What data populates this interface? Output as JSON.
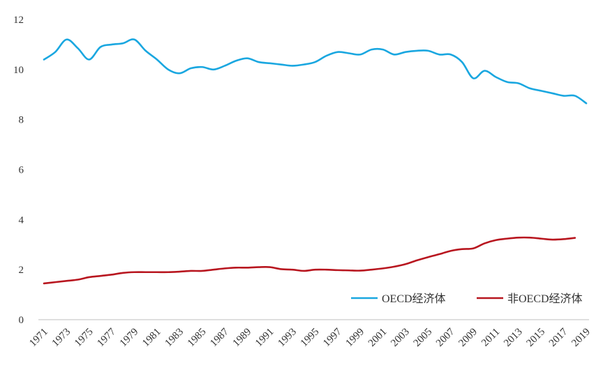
{
  "chart_data": {
    "type": "line",
    "title": "",
    "xlabel": "",
    "ylabel": "",
    "ylim": [
      0,
      12
    ],
    "y_ticks": [
      0,
      2,
      4,
      6,
      8,
      10,
      12
    ],
    "x_tick_labels": [
      "1971",
      "1973",
      "1975",
      "1977",
      "1979",
      "1981",
      "1983",
      "1985",
      "1987",
      "1989",
      "1991",
      "1993",
      "1995",
      "1997",
      "1999",
      "2001",
      "2003",
      "2005",
      "2007",
      "2009",
      "2011",
      "2013",
      "2015",
      "2017",
      "2019"
    ],
    "grid": false,
    "legend_position": "bottom-right",
    "x": [
      1971,
      1972,
      1973,
      1974,
      1975,
      1976,
      1977,
      1978,
      1979,
      1980,
      1981,
      1982,
      1983,
      1984,
      1985,
      1986,
      1987,
      1988,
      1989,
      1990,
      1991,
      1992,
      1993,
      1994,
      1995,
      1996,
      1997,
      1998,
      1999,
      2000,
      2001,
      2002,
      2003,
      2004,
      2005,
      2006,
      2007,
      2008,
      2009,
      2010,
      2011,
      2012,
      2013,
      2014,
      2015,
      2016,
      2017,
      2018,
      2019
    ],
    "series": [
      {
        "name": "OECD经济体",
        "color": "#1aa7e0",
        "values": [
          10.4,
          10.7,
          11.2,
          10.85,
          10.4,
          10.9,
          11.0,
          11.05,
          11.2,
          10.75,
          10.4,
          10.0,
          9.85,
          10.05,
          10.1,
          10.0,
          10.15,
          10.35,
          10.45,
          10.3,
          10.25,
          10.2,
          10.15,
          10.2,
          10.3,
          10.55,
          10.7,
          10.65,
          10.6,
          10.8,
          10.8,
          10.6,
          10.7,
          10.75,
          10.75,
          10.6,
          10.6,
          10.3,
          9.65,
          9.95,
          9.7,
          9.5,
          9.45,
          9.25,
          9.15,
          9.05,
          8.95,
          8.95,
          8.65
        ]
      },
      {
        "name": "非OECD经济体",
        "color": "#b8161f",
        "values": [
          1.45,
          1.5,
          1.55,
          1.6,
          1.7,
          1.75,
          1.8,
          1.87,
          1.9,
          1.9,
          1.9,
          1.9,
          1.92,
          1.95,
          1.95,
          2.0,
          2.05,
          2.08,
          2.08,
          2.1,
          2.1,
          2.02,
          2.0,
          1.95,
          2.0,
          2.0,
          1.98,
          1.97,
          1.96,
          2.0,
          2.05,
          2.12,
          2.22,
          2.37,
          2.5,
          2.62,
          2.75,
          2.82,
          2.85,
          3.05,
          3.18,
          3.24,
          3.28,
          3.28,
          3.24,
          3.2,
          3.22,
          3.27,
          null
        ]
      }
    ]
  }
}
